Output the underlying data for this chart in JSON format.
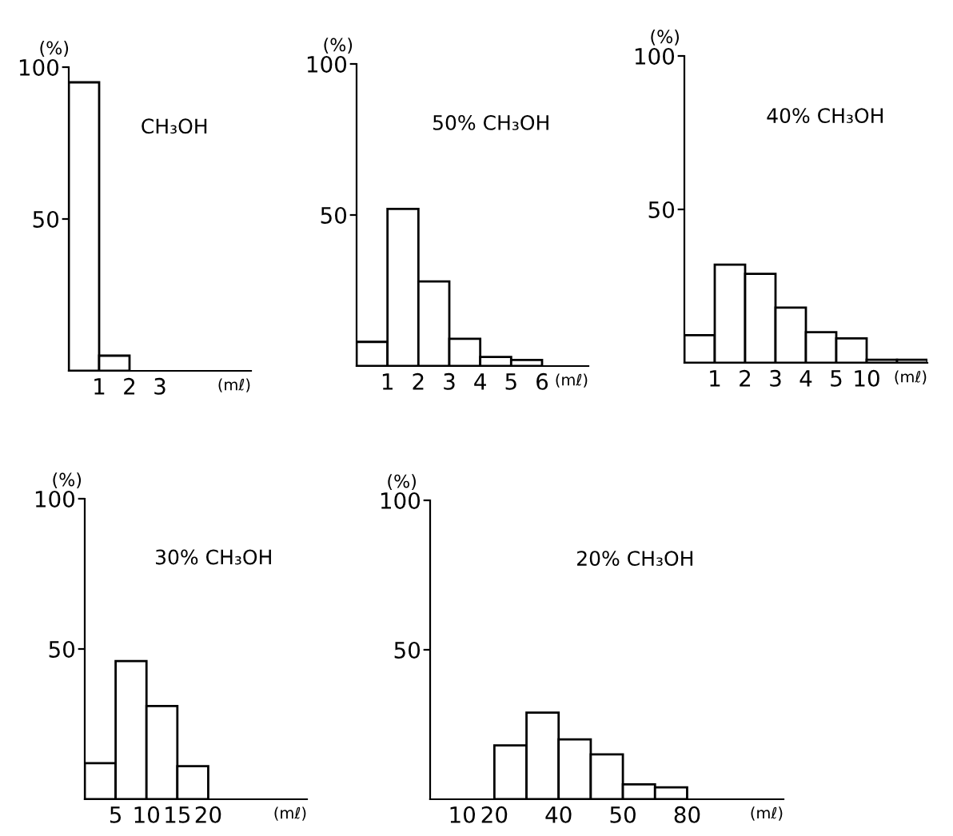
{
  "chart_data": [
    {
      "type": "histogram",
      "title": "CH₃OH",
      "ylabel": "(%)",
      "xlabel": "(mℓ)",
      "color": "#ffffff",
      "bins": [
        0,
        1,
        2
      ],
      "values": [
        95,
        5
      ],
      "xlim": [
        0,
        6
      ],
      "ylim": [
        0,
        100
      ],
      "xticks": [
        1,
        2,
        3
      ],
      "yticks": [
        50,
        100
      ]
    },
    {
      "type": "histogram",
      "title": "50% CH₃OH",
      "ylabel": "(%)",
      "xlabel": "(mℓ)",
      "color": "#ffffff",
      "bins": [
        0,
        1,
        2,
        3,
        4,
        5,
        6
      ],
      "values": [
        8,
        52,
        28,
        9,
        3,
        2
      ],
      "xlim": [
        0,
        7.5
      ],
      "ylim": [
        0,
        100
      ],
      "xticks": [
        1,
        2,
        3,
        4,
        5,
        6
      ],
      "yticks": [
        50,
        100
      ]
    },
    {
      "type": "bar",
      "title": "40% CH₃OH",
      "ylabel": "(%)",
      "xlabel": "(mℓ)",
      "color": "#ffffff",
      "categories": [
        "1",
        "2",
        "3",
        "4",
        "5",
        "10",
        null,
        null
      ],
      "values": [
        9,
        32,
        29,
        18,
        10,
        8,
        1,
        1
      ],
      "ylim": [
        0,
        100
      ],
      "yticks": [
        50,
        100
      ]
    },
    {
      "type": "histogram",
      "title": "30% CH₃OH",
      "ylabel": "(%)",
      "xlabel": "(mℓ)",
      "color": "#ffffff",
      "bins": [
        0,
        5,
        10,
        15,
        20
      ],
      "values": [
        12,
        46,
        31,
        11
      ],
      "xlim": [
        0,
        36
      ],
      "ylim": [
        0,
        100
      ],
      "xticks": [
        5,
        10,
        15,
        20
      ],
      "yticks": [
        50,
        100
      ]
    },
    {
      "type": "bar",
      "title": "20% CH₃OH",
      "ylabel": "(%)",
      "xlabel": "(mℓ)",
      "color": "#ffffff",
      "categories": [
        "10",
        "20",
        null,
        "40",
        null,
        "50",
        null,
        "80",
        null,
        null,
        null
      ],
      "values": [
        0,
        0,
        18,
        29,
        20,
        15,
        5,
        4,
        0,
        0,
        0
      ],
      "ylim": [
        0,
        100
      ],
      "yticks": [
        50,
        100
      ]
    }
  ]
}
